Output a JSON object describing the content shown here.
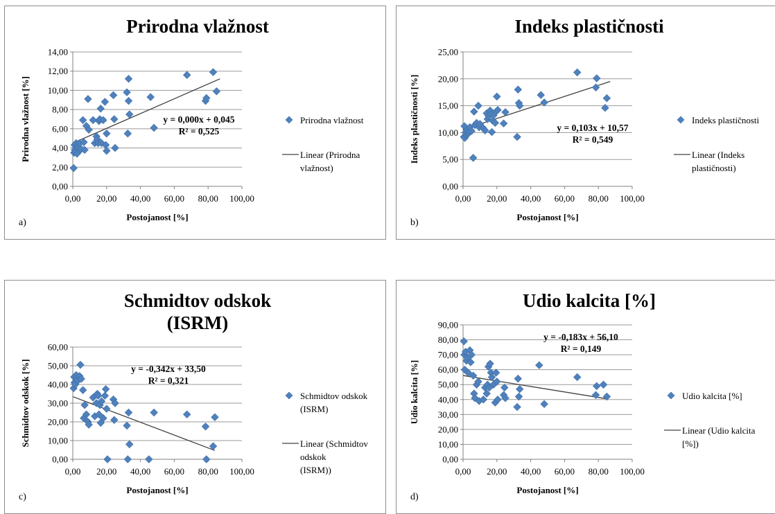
{
  "chart_data": [
    {
      "type": "scatter",
      "panel_label": "a)",
      "title": [
        "Prirodna vlažnost"
      ],
      "xlabel": "Postojanost [%]",
      "ylabel": "Prirodna vlažnost [%]",
      "xlim": [
        0,
        100
      ],
      "ylim": [
        0,
        14
      ],
      "xticks": [
        "0,00",
        "20,00",
        "40,00",
        "60,00",
        "80,00",
        "100,00"
      ],
      "yticks": [
        "0,00",
        "2,00",
        "4,00",
        "6,00",
        "8,00",
        "10,00",
        "12,00",
        "14,00"
      ],
      "grid": "horizontal",
      "legend_position": "right",
      "series": [
        {
          "name": [
            "Prirodna vlažnost"
          ],
          "marker": "diamond",
          "color": "#4f81bd",
          "x": [
            0.5,
            0.8,
            1.0,
            1.2,
            1.5,
            2.0,
            2.5,
            3.0,
            3.5,
            4.0,
            4.5,
            5.0,
            6.0,
            6.5,
            7.0,
            8.0,
            9.0,
            9.5,
            12.0,
            13.0,
            14.0,
            14.5,
            15.0,
            15.5,
            16.0,
            16.5,
            17.0,
            18.0,
            19.0,
            19.5,
            20.0,
            20.0,
            24.0,
            24.5,
            25.0,
            32.0,
            32.5,
            33.0,
            33.0,
            33.5,
            46.0,
            48.0,
            67.5,
            78.5,
            79.0,
            83.0,
            85.0
          ],
          "y": [
            1.9,
            3.5,
            4.3,
            3.8,
            3.6,
            4.5,
            3.4,
            4.2,
            4.0,
            4.5,
            3.8,
            3.9,
            6.9,
            4.6,
            3.8,
            6.3,
            9.1,
            5.9,
            6.9,
            4.5,
            5.2,
            4.9,
            4.5,
            6.8,
            7.0,
            8.1,
            4.5,
            6.9,
            8.8,
            4.3,
            3.7,
            5.5,
            9.5,
            7.0,
            4.0,
            9.8,
            5.5,
            11.2,
            8.9,
            7.5,
            9.3,
            6.1,
            11.6,
            8.9,
            9.2,
            11.9,
            9.9
          ]
        }
      ],
      "trendline": {
        "label": [
          "Linear (Prirodna",
          "vlažnost)"
        ],
        "x": [
          0,
          87
        ],
        "y": [
          4.5,
          11.2
        ],
        "equation": "y = 0,000x + 0,045",
        "r2": "R² = 0,525"
      }
    },
    {
      "type": "scatter",
      "panel_label": "b)",
      "title": [
        "Indeks plastičnosti"
      ],
      "xlabel": "Postojanost [%]",
      "ylabel": "Indeks plastičnosti [%]",
      "xlim": [
        0,
        100
      ],
      "ylim": [
        0,
        25
      ],
      "xticks": [
        "0,00",
        "20,00",
        "40,00",
        "60,00",
        "80,00",
        "100,00"
      ],
      "yticks": [
        "0,00",
        "5,00",
        "10,00",
        "15,00",
        "20,00",
        "25,00"
      ],
      "grid": "horizontal",
      "legend_position": "right",
      "series": [
        {
          "name": [
            "Indeks plastičnosti"
          ],
          "marker": "diamond",
          "color": "#4f81bd",
          "x": [
            0.5,
            0.8,
            1.0,
            1.5,
            2.0,
            2.5,
            3.0,
            3.5,
            4.0,
            5.0,
            6.0,
            6.5,
            7.0,
            8.0,
            9.0,
            9.5,
            10.0,
            12.0,
            13.0,
            14.0,
            14.5,
            15.0,
            16.0,
            16.5,
            17.0,
            17.5,
            18.0,
            19.0,
            19.5,
            20.0,
            20.5,
            24.0,
            25.0,
            32.0,
            32.5,
            33.0,
            33.5,
            46.0,
            48.0,
            67.5,
            78.5,
            79.0,
            84.0,
            85.0
          ],
          "y": [
            9.2,
            11.2,
            9.0,
            10.0,
            9.5,
            10.5,
            9.8,
            10.2,
            11.0,
            10.3,
            5.3,
            13.9,
            11.4,
            11.8,
            15.0,
            11.0,
            11.6,
            10.8,
            10.4,
            13.6,
            12.5,
            13.1,
            14.1,
            13.5,
            10.1,
            12.2,
            13.2,
            11.8,
            13.9,
            16.7,
            14.2,
            11.7,
            13.8,
            9.2,
            18.0,
            15.5,
            15.0,
            17.0,
            15.6,
            21.2,
            18.4,
            20.1,
            14.6,
            16.4
          ]
        }
      ],
      "trendline": {
        "label": [
          "Linear (Indeks",
          "plastičnosti)"
        ],
        "x": [
          0,
          87
        ],
        "y": [
          10.57,
          19.5
        ],
        "equation": "y = 0,103x + 10,57",
        "r2": "R² = 0,549"
      }
    },
    {
      "type": "scatter",
      "panel_label": "c)",
      "title": [
        "Schmidtov odskok",
        "(ISRM)"
      ],
      "xlabel": "Postojanost [%]",
      "ylabel": "Schmidtov odskok [%]",
      "xlim": [
        0,
        100
      ],
      "ylim": [
        0,
        60
      ],
      "xticks": [
        "0,00",
        "20,00",
        "40,00",
        "60,00",
        "80,00",
        "100,00"
      ],
      "yticks": [
        "0,00",
        "10,00",
        "20,00",
        "30,00",
        "40,00",
        "50,00",
        "60,00"
      ],
      "grid": "horizontal",
      "legend_position": "right",
      "series": [
        {
          "name": [
            "Schmidtov odskok",
            "(ISRM)"
          ],
          "marker": "diamond",
          "color": "#4f81bd",
          "x": [
            0.5,
            0.8,
            1.0,
            1.5,
            2.0,
            2.5,
            3.0,
            4.0,
            4.5,
            5.0,
            6.0,
            6.5,
            7.0,
            8.0,
            9.0,
            9.5,
            12.0,
            13.0,
            14.0,
            14.5,
            15.0,
            15.5,
            16.0,
            16.5,
            17.0,
            18.0,
            19.0,
            19.5,
            20.0,
            20.5,
            24.0,
            24.5,
            25.0,
            32.0,
            32.5,
            33.0,
            33.5,
            45.0,
            48.0,
            67.5,
            78.5,
            79.0,
            83.0,
            84.0
          ],
          "y": [
            38.0,
            44.0,
            41.0,
            40.0,
            45.0,
            43.0,
            42.0,
            44.5,
            50.5,
            43.0,
            37.0,
            22.0,
            29.0,
            24.0,
            20.0,
            18.5,
            33.0,
            23.0,
            30.0,
            35.0,
            34.0,
            24.0,
            29.0,
            19.5,
            31.0,
            22.0,
            34.0,
            37.5,
            27.0,
            0.0,
            32.0,
            21.0,
            30.0,
            18.0,
            0.0,
            25.0,
            8.0,
            0.0,
            25.0,
            24.0,
            17.5,
            0.0,
            7.0,
            22.5
          ]
        }
      ],
      "trendline": {
        "label": [
          "Linear (Schmidtov",
          "odskok",
          "(ISRM))"
        ],
        "x": [
          0,
          84
        ],
        "y": [
          33.5,
          4.7
        ],
        "equation": "y = -0,342x + 33,50",
        "r2": "R² = 0,321"
      }
    },
    {
      "type": "scatter",
      "panel_label": "d)",
      "title": [
        "Udio kalcita  [%]"
      ],
      "xlabel": "Postojanost [%]",
      "ylabel": "Udio kalcita [%]",
      "xlim": [
        0,
        100
      ],
      "ylim": [
        0,
        90
      ],
      "xticks": [
        "0,00",
        "20,00",
        "40,00",
        "60,00",
        "80,00",
        "100,00"
      ],
      "yticks": [
        "0,00",
        "10,00",
        "20,00",
        "30,00",
        "40,00",
        "50,00",
        "60,00",
        "70,00",
        "80,00",
        "90,00"
      ],
      "grid": "horizontal",
      "legend_position": "right",
      "series": [
        {
          "name": [
            "Udio kalcita [%]"
          ],
          "marker": "diamond",
          "color": "#4f81bd",
          "x": [
            0.5,
            0.8,
            1.0,
            1.5,
            2.0,
            2.5,
            3.0,
            4.0,
            4.5,
            5.0,
            6.0,
            6.5,
            7.0,
            8.0,
            9.0,
            9.5,
            12.0,
            13.0,
            14.0,
            14.5,
            15.0,
            15.5,
            16.0,
            16.5,
            17.0,
            18.0,
            19.0,
            19.5,
            20.0,
            20.5,
            24.0,
            24.5,
            25.0,
            32.0,
            32.5,
            33.0,
            33.5,
            45.0,
            48.0,
            67.5,
            78.5,
            79.0,
            83.0,
            85.0
          ],
          "y": [
            79.0,
            70.0,
            60.0,
            72.0,
            66.0,
            68.0,
            58.0,
            73.0,
            65.0,
            70.0,
            56.0,
            44.0,
            41.0,
            50.0,
            52.0,
            39.0,
            40.0,
            48.0,
            44.0,
            50.0,
            62.0,
            48.0,
            64.0,
            58.0,
            55.0,
            50.0,
            38.0,
            58.0,
            52.0,
            40.0,
            43.0,
            48.0,
            41.0,
            35.0,
            54.0,
            42.0,
            47.0,
            63.0,
            37.0,
            55.0,
            43.0,
            49.0,
            50.0,
            42.0
          ]
        }
      ],
      "trendline": {
        "label": [
          "Linear (Udio kalcita",
          "[%])"
        ],
        "x": [
          0,
          85
        ],
        "y": [
          56.1,
          40.5
        ],
        "equation": "y = -0,183x + 56,10",
        "r2": "R² = 0,149"
      }
    }
  ]
}
